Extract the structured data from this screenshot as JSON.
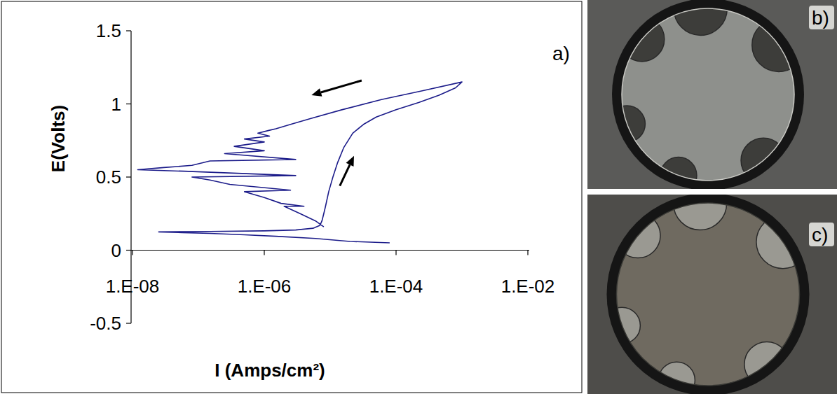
{
  "chart_data": {
    "type": "line",
    "label": "a)",
    "x_label": "I (Amps/cm²)",
    "y_label": "E(Volts)",
    "log": "x",
    "grid": false,
    "color": "#1c1c8a",
    "xlim": [
      1e-08,
      0.01
    ],
    "ylim": [
      -0.5,
      1.5
    ],
    "xticks": [
      {
        "value": 1e-08,
        "label": "1.E-08"
      },
      {
        "value": 1e-06,
        "label": "1.E-06"
      },
      {
        "value": 0.0001,
        "label": "1.E-04"
      },
      {
        "value": 0.01,
        "label": "1.E-02"
      }
    ],
    "yticks": [
      -0.5,
      0,
      0.5,
      1,
      1.5
    ],
    "x": [
      8e-05,
      2e-05,
      6e-06,
      1.5e-06,
      5e-07,
      1.5e-07,
      5.7e-08,
      2.5e-08,
      1.5e-07,
      1e-06,
      3e-06,
      5.5e-06,
      7e-06,
      7.5e-06,
      8e-06,
      8.5e-06,
      9.5e-06,
      1.1e-05,
      1.3e-05,
      1.6e-05,
      2.2e-05,
      3.2e-05,
      5e-05,
      0.0001,
      0.00022,
      0.00045,
      0.0008,
      0.001,
      0.00025,
      6e-05,
      1.5e-05,
      5e-06,
      2.5e-06,
      1.5e-06,
      1.2e-06,
      8e-07,
      1.2e-06,
      5e-07,
      1e-06,
      3.5e-07,
      1e-06,
      2.5e-07,
      3e-06,
      1.5e-07,
      8e-08,
      3e-08,
      1.2e-08,
      6e-08,
      3e-06,
      8e-08,
      1.5e-07,
      3e-07,
      2.5e-06,
      5e-07,
      1e-06,
      1.8e-06,
      4e-06,
      2e-06,
      3.5e-06,
      6e-06,
      8e-06
    ],
    "values": [
      0.05,
      0.06,
      0.08,
      0.095,
      0.105,
      0.115,
      0.12,
      0.125,
      0.128,
      0.132,
      0.138,
      0.15,
      0.17,
      0.2,
      0.25,
      0.3,
      0.4,
      0.5,
      0.6,
      0.7,
      0.8,
      0.86,
      0.91,
      0.96,
      1.01,
      1.06,
      1.11,
      1.15,
      1.09,
      1.03,
      0.96,
      0.9,
      0.86,
      0.83,
      0.82,
      0.8,
      0.78,
      0.76,
      0.74,
      0.71,
      0.68,
      0.66,
      0.62,
      0.61,
      0.58,
      0.565,
      0.55,
      0.54,
      0.51,
      0.5,
      0.48,
      0.45,
      0.41,
      0.4,
      0.36,
      0.32,
      0.3,
      0.3,
      0.25,
      0.2,
      0.16
    ],
    "arrows": [
      {
        "from": [
          3e-05,
          1.16
        ],
        "to": [
          5.2e-06,
          1.06
        ]
      },
      {
        "from": [
          1.4e-05,
          0.44
        ],
        "to": [
          2.3e-05,
          0.645
        ]
      }
    ]
  },
  "photos": [
    {
      "label": "b)"
    },
    {
      "label": "c)"
    }
  ]
}
